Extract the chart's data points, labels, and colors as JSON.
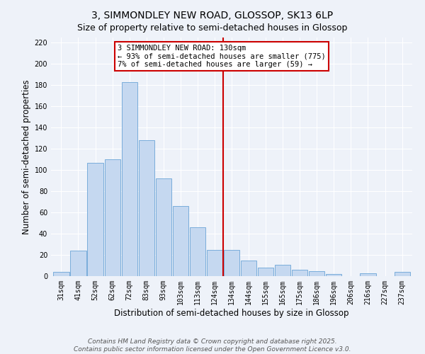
{
  "title": "3, SIMMONDLEY NEW ROAD, GLOSSOP, SK13 6LP",
  "subtitle": "Size of property relative to semi-detached houses in Glossop",
  "xlabel": "Distribution of semi-detached houses by size in Glossop",
  "ylabel": "Number of semi-detached properties",
  "categories": [
    "31sqm",
    "41sqm",
    "52sqm",
    "62sqm",
    "72sqm",
    "83sqm",
    "93sqm",
    "103sqm",
    "113sqm",
    "124sqm",
    "134sqm",
    "144sqm",
    "155sqm",
    "165sqm",
    "175sqm",
    "186sqm",
    "196sqm",
    "206sqm",
    "216sqm",
    "227sqm",
    "237sqm"
  ],
  "values": [
    4,
    24,
    107,
    110,
    183,
    128,
    92,
    66,
    46,
    25,
    25,
    15,
    8,
    11,
    6,
    5,
    2,
    0,
    3,
    0,
    4
  ],
  "bar_color": "#c5d8f0",
  "bar_edge_color": "#7aaddb",
  "vline_x_idx": 10,
  "vline_color": "#cc0000",
  "annotation_title": "3 SIMMONDLEY NEW ROAD: 130sqm",
  "annotation_line1": "← 93% of semi-detached houses are smaller (775)",
  "annotation_line2": "7% of semi-detached houses are larger (59) →",
  "annotation_box_color": "#ffffff",
  "annotation_box_edge": "#cc0000",
  "ylim": [
    0,
    225
  ],
  "yticks": [
    0,
    20,
    40,
    60,
    80,
    100,
    120,
    140,
    160,
    180,
    200,
    220
  ],
  "footer1": "Contains HM Land Registry data © Crown copyright and database right 2025.",
  "footer2": "Contains public sector information licensed under the Open Government Licence v3.0.",
  "bg_color": "#eef2f9",
  "plot_bg_color": "#eef2f9",
  "grid_color": "#ffffff",
  "title_fontsize": 10,
  "subtitle_fontsize": 9,
  "axis_label_fontsize": 8.5,
  "tick_fontsize": 7,
  "annotation_fontsize": 7.5,
  "footer_fontsize": 6.5
}
